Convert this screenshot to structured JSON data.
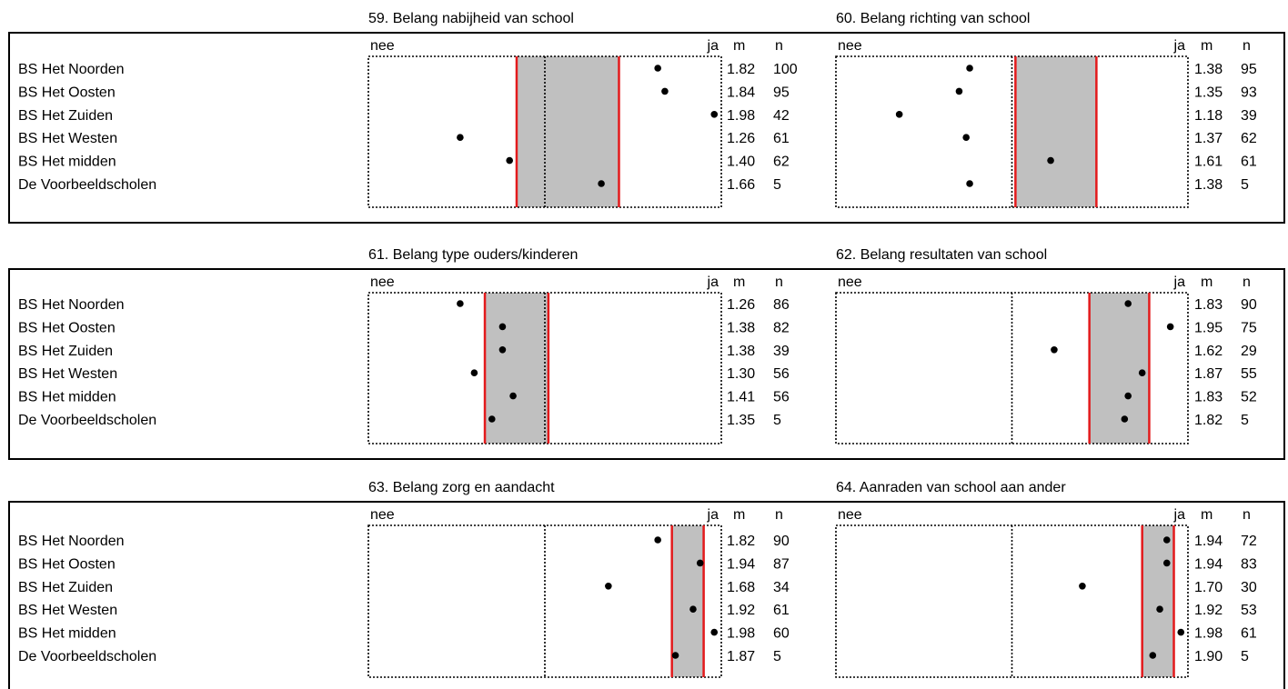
{
  "groups": [
    "BS Het Noorden",
    "BS Het Oosten",
    "BS Het Zuiden",
    "BS Het Westen",
    "BS Het midden",
    "De Voorbeeldscholen"
  ],
  "labels": {
    "low": "nee",
    "high": "ja",
    "mean": "m",
    "count": "n"
  },
  "colors": {
    "band_fill": "#c0c0c0",
    "band_edge": "#e31a1c",
    "dot": "#000000",
    "frame": "#000000"
  },
  "chart_data": [
    {
      "type": "scatter",
      "title": "59. Belang nabijheid van school",
      "xlim": [
        1,
        2
      ],
      "means": [
        1.82,
        1.84,
        1.98,
        1.26,
        1.4,
        1.66
      ],
      "n": [
        100,
        95,
        42,
        61,
        62,
        5
      ],
      "band": [
        1.42,
        1.71
      ]
    },
    {
      "type": "scatter",
      "title": "60. Belang richting van school",
      "xlim": [
        1,
        2
      ],
      "means": [
        1.38,
        1.35,
        1.18,
        1.37,
        1.61,
        1.38
      ],
      "n": [
        95,
        93,
        39,
        62,
        61,
        5
      ],
      "band": [
        1.51,
        1.74
      ]
    },
    {
      "type": "scatter",
      "title": "61. Belang type ouders/kinderen",
      "xlim": [
        1,
        2
      ],
      "means": [
        1.26,
        1.38,
        1.38,
        1.3,
        1.41,
        1.35
      ],
      "n": [
        86,
        82,
        39,
        56,
        56,
        5
      ],
      "band": [
        1.33,
        1.51
      ]
    },
    {
      "type": "scatter",
      "title": "62. Belang resultaten van school",
      "xlim": [
        1,
        2
      ],
      "means": [
        1.83,
        1.95,
        1.62,
        1.87,
        1.83,
        1.82
      ],
      "n": [
        90,
        75,
        29,
        55,
        52,
        5
      ],
      "band": [
        1.72,
        1.89
      ]
    },
    {
      "type": "scatter",
      "title": "63. Belang zorg en aandacht",
      "xlim": [
        1,
        2
      ],
      "means": [
        1.82,
        1.94,
        1.68,
        1.92,
        1.98,
        1.87
      ],
      "n": [
        90,
        87,
        34,
        61,
        60,
        5
      ],
      "band": [
        1.86,
        1.95
      ]
    },
    {
      "type": "scatter",
      "title": "64. Aanraden van school aan ander",
      "xlim": [
        1,
        2
      ],
      "means": [
        1.94,
        1.94,
        1.7,
        1.92,
        1.98,
        1.9
      ],
      "n": [
        72,
        83,
        30,
        53,
        61,
        5
      ],
      "band": [
        1.87,
        1.96
      ]
    }
  ]
}
